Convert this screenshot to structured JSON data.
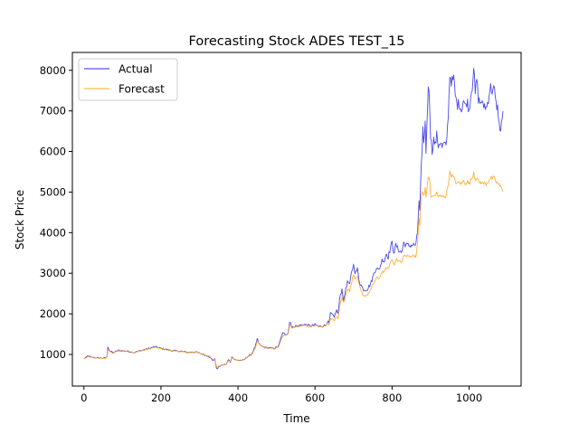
{
  "chart_data": {
    "type": "line",
    "title": "Forecasting Stock ADES TEST_15",
    "xlabel": "Time",
    "ylabel": "Stock Price",
    "xlim": [
      -30,
      1135
    ],
    "ylim": [
      220,
      8440
    ],
    "xticks": [
      0,
      200,
      400,
      600,
      800,
      1000
    ],
    "yticks": [
      1000,
      2000,
      3000,
      4000,
      5000,
      6000,
      7000,
      8000
    ],
    "legend_position": "top-left",
    "grid": false,
    "series": [
      {
        "name": "Actual",
        "color": "#2a2ae6",
        "anchors": [
          [
            0,
            900
          ],
          [
            5,
            920
          ],
          [
            10,
            960
          ],
          [
            20,
            930
          ],
          [
            30,
            920
          ],
          [
            45,
            910
          ],
          [
            55,
            910
          ],
          [
            60,
            950
          ],
          [
            62,
            1200
          ],
          [
            66,
            1100
          ],
          [
            75,
            1040
          ],
          [
            90,
            1100
          ],
          [
            110,
            1080
          ],
          [
            130,
            1050
          ],
          [
            150,
            1100
          ],
          [
            170,
            1150
          ],
          [
            185,
            1190
          ],
          [
            200,
            1150
          ],
          [
            215,
            1120
          ],
          [
            230,
            1090
          ],
          [
            250,
            1080
          ],
          [
            270,
            1050
          ],
          [
            290,
            1060
          ],
          [
            310,
            1000
          ],
          [
            325,
            950
          ],
          [
            335,
            850
          ],
          [
            340,
            880
          ],
          [
            345,
            620
          ],
          [
            350,
            700
          ],
          [
            360,
            740
          ],
          [
            370,
            760
          ],
          [
            375,
            880
          ],
          [
            380,
            810
          ],
          [
            385,
            960
          ],
          [
            390,
            880
          ],
          [
            400,
            850
          ],
          [
            415,
            860
          ],
          [
            425,
            950
          ],
          [
            435,
            1000
          ],
          [
            445,
            1200
          ],
          [
            450,
            1370
          ],
          [
            455,
            1250
          ],
          [
            465,
            1180
          ],
          [
            480,
            1160
          ],
          [
            495,
            1150
          ],
          [
            505,
            1200
          ],
          [
            510,
            1350
          ],
          [
            515,
            1520
          ],
          [
            525,
            1500
          ],
          [
            530,
            1530
          ],
          [
            535,
            1860
          ],
          [
            540,
            1640
          ],
          [
            545,
            1700
          ],
          [
            555,
            1700
          ],
          [
            570,
            1740
          ],
          [
            590,
            1700
          ],
          [
            600,
            1730
          ],
          [
            610,
            1690
          ],
          [
            620,
            1700
          ],
          [
            628,
            1720
          ],
          [
            632,
            1820
          ],
          [
            636,
            1760
          ],
          [
            640,
            2000
          ],
          [
            645,
            1980
          ],
          [
            650,
            1900
          ],
          [
            655,
            2100
          ],
          [
            660,
            2000
          ],
          [
            665,
            2450
          ],
          [
            670,
            2600
          ],
          [
            675,
            2300
          ],
          [
            680,
            2650
          ],
          [
            685,
            2800
          ],
          [
            690,
            2700
          ],
          [
            695,
            3050
          ],
          [
            700,
            3200
          ],
          [
            705,
            3000
          ],
          [
            710,
            3100
          ],
          [
            715,
            2800
          ],
          [
            720,
            2700
          ],
          [
            725,
            2600
          ],
          [
            735,
            2600
          ],
          [
            745,
            2750
          ],
          [
            755,
            3050
          ],
          [
            760,
            3150
          ],
          [
            765,
            3050
          ],
          [
            770,
            3200
          ],
          [
            775,
            3350
          ],
          [
            780,
            3300
          ],
          [
            785,
            3500
          ],
          [
            790,
            3400
          ],
          [
            795,
            3600
          ],
          [
            800,
            3750
          ],
          [
            805,
            3500
          ],
          [
            810,
            3700
          ],
          [
            815,
            3600
          ],
          [
            820,
            3550
          ],
          [
            825,
            3500
          ],
          [
            830,
            3750
          ],
          [
            835,
            3700
          ],
          [
            845,
            3680
          ],
          [
            855,
            3700
          ],
          [
            862,
            3700
          ],
          [
            866,
            4000
          ],
          [
            870,
            4800
          ],
          [
            872,
            4500
          ],
          [
            875,
            5500
          ],
          [
            878,
            5900
          ],
          [
            880,
            6500
          ],
          [
            883,
            6200
          ],
          [
            886,
            6700
          ],
          [
            888,
            6000
          ],
          [
            892,
            7100
          ],
          [
            895,
            7700
          ],
          [
            897,
            7400
          ],
          [
            900,
            6400
          ],
          [
            904,
            6000
          ],
          [
            908,
            6300
          ],
          [
            912,
            6150
          ],
          [
            916,
            6400
          ],
          [
            920,
            6150
          ],
          [
            925,
            6250
          ],
          [
            930,
            6100
          ],
          [
            935,
            6200
          ],
          [
            940,
            6100
          ],
          [
            945,
            6700
          ],
          [
            950,
            7900
          ],
          [
            955,
            7700
          ],
          [
            960,
            7800
          ],
          [
            965,
            7300
          ],
          [
            970,
            7150
          ],
          [
            975,
            7200
          ],
          [
            980,
            7000
          ],
          [
            985,
            7300
          ],
          [
            990,
            7100
          ],
          [
            995,
            7250
          ],
          [
            1000,
            7000
          ],
          [
            1005,
            7450
          ],
          [
            1008,
            7600
          ],
          [
            1012,
            8100
          ],
          [
            1016,
            7400
          ],
          [
            1020,
            7800
          ],
          [
            1024,
            7300
          ],
          [
            1028,
            7200
          ],
          [
            1032,
            7250
          ],
          [
            1036,
            7100
          ],
          [
            1040,
            7150
          ],
          [
            1045,
            7050
          ],
          [
            1050,
            7300
          ],
          [
            1055,
            7600
          ],
          [
            1060,
            7500
          ],
          [
            1065,
            7550
          ],
          [
            1070,
            7150
          ],
          [
            1075,
            7050
          ],
          [
            1080,
            6450
          ],
          [
            1085,
            6800
          ],
          [
            1088,
            6900
          ]
        ]
      },
      {
        "name": "Forecast",
        "color": "#ffa726",
        "anchors": [
          [
            0,
            900
          ],
          [
            5,
            910
          ],
          [
            10,
            940
          ],
          [
            20,
            930
          ],
          [
            30,
            915
          ],
          [
            45,
            905
          ],
          [
            55,
            905
          ],
          [
            60,
            930
          ],
          [
            62,
            1120
          ],
          [
            66,
            1080
          ],
          [
            75,
            1030
          ],
          [
            90,
            1090
          ],
          [
            110,
            1075
          ],
          [
            130,
            1045
          ],
          [
            150,
            1090
          ],
          [
            170,
            1140
          ],
          [
            185,
            1180
          ],
          [
            200,
            1145
          ],
          [
            215,
            1115
          ],
          [
            230,
            1085
          ],
          [
            250,
            1075
          ],
          [
            270,
            1050
          ],
          [
            290,
            1055
          ],
          [
            310,
            1000
          ],
          [
            325,
            960
          ],
          [
            335,
            880
          ],
          [
            340,
            870
          ],
          [
            345,
            680
          ],
          [
            350,
            710
          ],
          [
            360,
            740
          ],
          [
            370,
            760
          ],
          [
            375,
            850
          ],
          [
            380,
            820
          ],
          [
            385,
            930
          ],
          [
            390,
            890
          ],
          [
            400,
            860
          ],
          [
            415,
            865
          ],
          [
            425,
            940
          ],
          [
            435,
            990
          ],
          [
            445,
            1150
          ],
          [
            450,
            1330
          ],
          [
            455,
            1260
          ],
          [
            465,
            1190
          ],
          [
            480,
            1160
          ],
          [
            495,
            1150
          ],
          [
            505,
            1190
          ],
          [
            510,
            1300
          ],
          [
            515,
            1450
          ],
          [
            525,
            1480
          ],
          [
            530,
            1500
          ],
          [
            535,
            1750
          ],
          [
            540,
            1650
          ],
          [
            545,
            1680
          ],
          [
            555,
            1680
          ],
          [
            570,
            1720
          ],
          [
            590,
            1690
          ],
          [
            600,
            1710
          ],
          [
            610,
            1680
          ],
          [
            620,
            1690
          ],
          [
            628,
            1700
          ],
          [
            632,
            1780
          ],
          [
            636,
            1740
          ],
          [
            640,
            1880
          ],
          [
            645,
            1870
          ],
          [
            650,
            1820
          ],
          [
            655,
            1950
          ],
          [
            660,
            1900
          ],
          [
            665,
            2250
          ],
          [
            670,
            2400
          ],
          [
            675,
            2250
          ],
          [
            680,
            2500
          ],
          [
            685,
            2620
          ],
          [
            690,
            2560
          ],
          [
            695,
            2800
          ],
          [
            700,
            2950
          ],
          [
            705,
            2850
          ],
          [
            710,
            2900
          ],
          [
            715,
            2700
          ],
          [
            720,
            2550
          ],
          [
            725,
            2450
          ],
          [
            735,
            2450
          ],
          [
            745,
            2600
          ],
          [
            755,
            2800
          ],
          [
            760,
            2900
          ],
          [
            765,
            2850
          ],
          [
            770,
            2950
          ],
          [
            775,
            3050
          ],
          [
            780,
            3020
          ],
          [
            785,
            3150
          ],
          [
            790,
            3100
          ],
          [
            795,
            3250
          ],
          [
            800,
            3350
          ],
          [
            805,
            3200
          ],
          [
            810,
            3350
          ],
          [
            815,
            3300
          ],
          [
            820,
            3300
          ],
          [
            825,
            3250
          ],
          [
            830,
            3450
          ],
          [
            835,
            3420
          ],
          [
            845,
            3420
          ],
          [
            855,
            3430
          ],
          [
            862,
            3430
          ],
          [
            866,
            3700
          ],
          [
            870,
            4350
          ],
          [
            872,
            4200
          ],
          [
            875,
            4800
          ],
          [
            878,
            5000
          ],
          [
            880,
            4950
          ],
          [
            883,
            4900
          ],
          [
            886,
            5100
          ],
          [
            888,
            4850
          ],
          [
            892,
            5200
          ],
          [
            895,
            5450
          ],
          [
            897,
            5350
          ],
          [
            900,
            4950
          ],
          [
            904,
            4850
          ],
          [
            908,
            4950
          ],
          [
            912,
            4900
          ],
          [
            916,
            5000
          ],
          [
            920,
            4880
          ],
          [
            925,
            4900
          ],
          [
            930,
            4880
          ],
          [
            935,
            4900
          ],
          [
            940,
            4900
          ],
          [
            945,
            5150
          ],
          [
            950,
            5480
          ],
          [
            955,
            5400
          ],
          [
            960,
            5350
          ],
          [
            965,
            5250
          ],
          [
            970,
            5200
          ],
          [
            975,
            5250
          ],
          [
            980,
            5200
          ],
          [
            985,
            5280
          ],
          [
            990,
            5220
          ],
          [
            995,
            5260
          ],
          [
            1000,
            5200
          ],
          [
            1005,
            5300
          ],
          [
            1008,
            5350
          ],
          [
            1012,
            5500
          ],
          [
            1016,
            5300
          ],
          [
            1020,
            5380
          ],
          [
            1024,
            5250
          ],
          [
            1028,
            5230
          ],
          [
            1032,
            5250
          ],
          [
            1036,
            5200
          ],
          [
            1040,
            5220
          ],
          [
            1045,
            5200
          ],
          [
            1050,
            5280
          ],
          [
            1055,
            5350
          ],
          [
            1060,
            5330
          ],
          [
            1065,
            5350
          ],
          [
            1070,
            5250
          ],
          [
            1075,
            5200
          ],
          [
            1080,
            5150
          ],
          [
            1085,
            5100
          ],
          [
            1088,
            5050
          ]
        ]
      }
    ]
  }
}
